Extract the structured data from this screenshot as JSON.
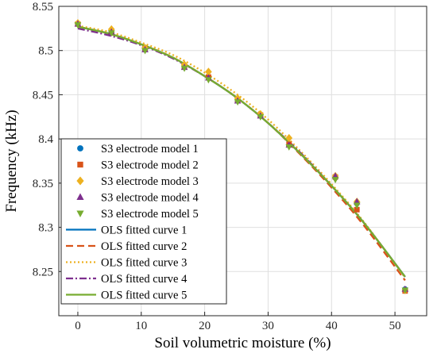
{
  "chart_data": {
    "type": "scatter",
    "xlabel": "Soil volumetric moisture (%)",
    "ylabel": "Frequency (kHz)",
    "xlim": [
      -3,
      55
    ],
    "ylim": [
      8.2,
      8.55
    ],
    "xticks": [
      0,
      10,
      20,
      30,
      40,
      50
    ],
    "yticks": [
      8.2,
      8.25,
      8.3,
      8.35,
      8.4,
      8.45,
      8.5,
      8.55
    ],
    "ytick_labels": [
      "",
      "8.25",
      "8.3",
      "8.35",
      "8.4",
      "8.45",
      "8.5",
      "8.55"
    ],
    "grid": true,
    "legend_position": "bottom-left",
    "colors": {
      "model_1": "#0072BD",
      "model_2": "#D95319",
      "model_3": "#EDB120",
      "model_4": "#7E2F8E",
      "model_5": "#77AC30"
    },
    "marker_series": [
      {
        "name": "S3 electrode model 1",
        "marker": "circle",
        "color": "#0072BD",
        "x": [
          0,
          5.3,
          10.6,
          16.8,
          20.6,
          25.2,
          28.8,
          33.3,
          40.6,
          44.0,
          51.6
        ],
        "y": [
          8.53,
          8.521,
          8.501,
          8.481,
          8.469,
          8.443,
          8.426,
          8.393,
          8.356,
          8.327,
          8.23
        ]
      },
      {
        "name": "S3 electrode model 2",
        "marker": "square",
        "color": "#D95319",
        "x": [
          0,
          5.3,
          10.6,
          16.8,
          20.6,
          25.2,
          28.8,
          33.3,
          40.6,
          44.0,
          51.6
        ],
        "y": [
          8.53,
          8.522,
          8.502,
          8.482,
          8.47,
          8.444,
          8.427,
          8.394,
          8.357,
          8.32,
          8.228
        ]
      },
      {
        "name": "S3 electrode model 3",
        "marker": "diamond",
        "color": "#EDB120",
        "x": [
          0,
          5.3,
          10.6,
          16.8,
          20.6,
          25.2,
          28.8,
          33.3,
          40.6,
          44.0,
          51.6
        ],
        "y": [
          8.531,
          8.524,
          8.503,
          8.484,
          8.476,
          8.446,
          8.428,
          8.401,
          8.358,
          8.329,
          8.229
        ]
      },
      {
        "name": "S3 electrode model 4",
        "marker": "triangle-up",
        "color": "#7E2F8E",
        "x": [
          0,
          5.3,
          10.6,
          16.8,
          20.6,
          25.2,
          28.8,
          33.3,
          40.6,
          44.0,
          51.6
        ],
        "y": [
          8.53,
          8.521,
          8.501,
          8.481,
          8.469,
          8.443,
          8.426,
          8.393,
          8.358,
          8.329,
          8.23
        ]
      },
      {
        "name": "S3 electrode model 5",
        "marker": "triangle-down",
        "color": "#77AC30",
        "x": [
          0,
          5.3,
          10.6,
          16.8,
          20.6,
          25.2,
          28.8,
          33.3,
          40.6,
          44.0,
          51.6
        ],
        "y": [
          8.529,
          8.52,
          8.5,
          8.48,
          8.467,
          8.442,
          8.425,
          8.391,
          8.354,
          8.325,
          8.229
        ]
      }
    ],
    "curve_series": [
      {
        "name": "OLS fitted curve 1",
        "color": "#0072BD",
        "dash": "solid",
        "x": [
          0,
          5,
          10,
          15,
          20,
          25,
          30,
          35,
          40,
          45,
          51.6
        ],
        "y": [
          8.527,
          8.519,
          8.507,
          8.492,
          8.471,
          8.447,
          8.418,
          8.384,
          8.347,
          8.306,
          8.244
        ]
      },
      {
        "name": "OLS fitted curve 2",
        "color": "#D95319",
        "dash": "dashed",
        "x": [
          0,
          5,
          10,
          15,
          20,
          25,
          30,
          35,
          40,
          45,
          51.6
        ],
        "y": [
          8.527,
          8.519,
          8.507,
          8.492,
          8.471,
          8.447,
          8.418,
          8.383,
          8.345,
          8.303,
          8.24
        ]
      },
      {
        "name": "OLS fitted curve 3",
        "color": "#EDB120",
        "dash": "dotted",
        "x": [
          0,
          5,
          10,
          15,
          20,
          25,
          30,
          35,
          40,
          45,
          51.6
        ],
        "y": [
          8.528,
          8.521,
          8.509,
          8.495,
          8.475,
          8.451,
          8.422,
          8.387,
          8.349,
          8.307,
          8.243
        ]
      },
      {
        "name": "OLS fitted curve 4",
        "color": "#7E2F8E",
        "dash": "dashdot",
        "x": [
          0,
          5,
          10,
          15,
          20,
          25,
          30,
          35,
          40,
          45,
          51.6
        ],
        "y": [
          8.525,
          8.517,
          8.506,
          8.491,
          8.471,
          8.447,
          8.418,
          8.385,
          8.347,
          8.306,
          8.244
        ]
      },
      {
        "name": "OLS fitted curve 5",
        "color": "#77AC30",
        "dash": "solid",
        "x": [
          0,
          5,
          10,
          15,
          20,
          25,
          30,
          35,
          40,
          45,
          51.6
        ],
        "y": [
          8.527,
          8.519,
          8.507,
          8.492,
          8.471,
          8.447,
          8.418,
          8.384,
          8.347,
          8.306,
          8.244
        ]
      }
    ]
  }
}
